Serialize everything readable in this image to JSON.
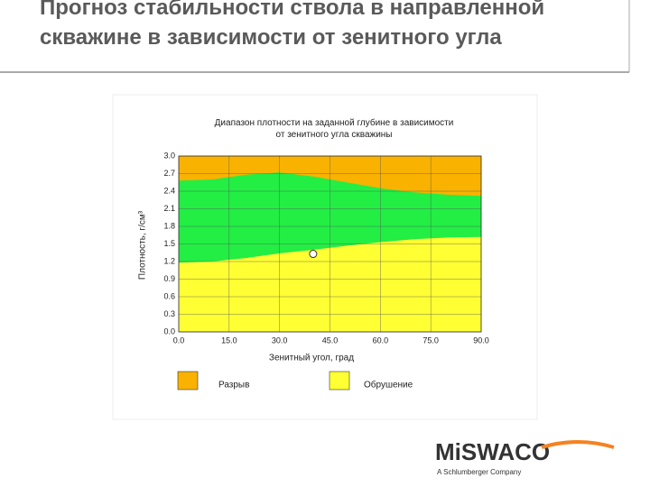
{
  "slide_title": "Прогноз стабильности ствола в направленной скважине в зависимости от зенитного угла",
  "logo": {
    "name": "MiSWACO",
    "subtitle": "A Schlumberger Company"
  },
  "chart_data": {
    "type": "area",
    "title": "Диапазон плотности на заданной глубине в зависимости от зенитного угла скважины",
    "x_label": "Зенитный угол, град",
    "y_label": "Плотность, г/см³",
    "x": [
      0,
      10,
      20,
      30,
      40,
      50,
      60,
      70,
      80,
      90
    ],
    "series": [
      {
        "name": "Разрыв",
        "color": "#f9b200",
        "fill": "above",
        "values": [
          2.58,
          2.6,
          2.68,
          2.72,
          2.65,
          2.55,
          2.45,
          2.38,
          2.34,
          2.32
        ]
      },
      {
        "name": "Обрушение",
        "color": "#ffff33",
        "fill": "below",
        "values": [
          1.18,
          1.2,
          1.26,
          1.34,
          1.4,
          1.47,
          1.53,
          1.58,
          1.61,
          1.62
        ]
      }
    ],
    "window_color": "#22ee44",
    "marker": {
      "x": 40,
      "y": 1.33
    },
    "xlim": [
      0,
      90
    ],
    "xticks": [
      {
        "value": 0,
        "label": "0.0"
      },
      {
        "value": 15,
        "label": "15.0"
      },
      {
        "value": 30,
        "label": "30.0"
      },
      {
        "value": 45,
        "label": "45.0"
      },
      {
        "value": 60,
        "label": "60.0"
      },
      {
        "value": 75,
        "label": "75.0"
      },
      {
        "value": 90,
        "label": "90.0"
      }
    ],
    "ylim": [
      0,
      3
    ],
    "yticks": [
      {
        "value": 0,
        "label": "0.0"
      },
      0.3,
      0.6,
      0.9,
      1.2,
      1.5,
      1.8,
      2.1,
      2.4,
      2.7,
      {
        "value": 3,
        "label": "3.0"
      }
    ]
  }
}
